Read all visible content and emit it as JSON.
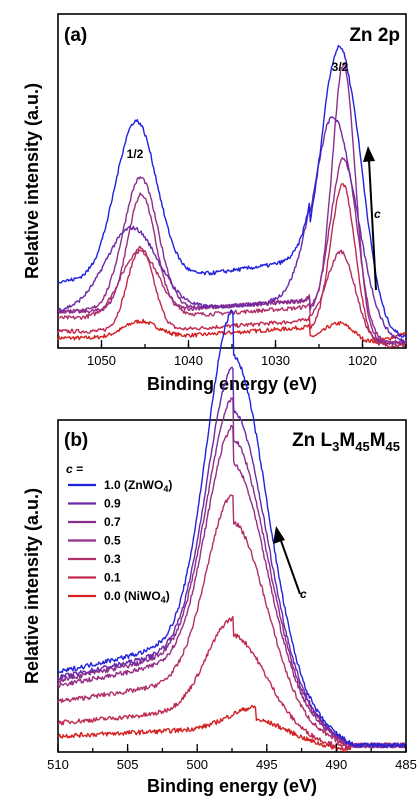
{
  "chart_data": [
    {
      "type": "line",
      "panel_label": "(a)",
      "element_label": "Zn 2p",
      "xlabel": "Binding energy (eV)",
      "ylabel": "Relative intensity (a.u.)",
      "xlim": [
        1055,
        1015
      ],
      "x_ticks": [
        1050,
        1040,
        1030,
        1020
      ],
      "x_minor_step": 5,
      "y_ticks": "none",
      "annotations": [
        "1/2",
        "3/2",
        "c"
      ],
      "series": [
        {
          "color": "#d42020",
          "base": 0.03,
          "tail_rise": 0.04,
          "peaks": [
            {
              "x": 1045.5,
              "h": 0.05,
              "w": 2.0
            },
            {
              "x": 1022.2,
              "h": 0.06,
              "w": 1.6
            }
          ],
          "peaks_base": [
            0.02,
            0.0
          ]
        },
        {
          "color": "#c02a50",
          "base": 0.05,
          "tail_rise": 0.0,
          "peaks": [
            {
              "x": 1045.5,
              "h": 0.25,
              "w": 1.5
            },
            {
              "x": 1022.2,
              "h": 0.47,
              "w": 1.4
            }
          ]
        },
        {
          "color": "#b0306a",
          "base": 0.09,
          "tail_rise": 0.0,
          "peaks": [
            {
              "x": 1045.6,
              "h": 0.2,
              "w": 2.2
            },
            {
              "x": 1022.2,
              "h": 0.25,
              "w": 1.5
            }
          ]
        },
        {
          "color": "#962e86",
          "base": 0.11,
          "tail_rise": 0.0,
          "peaks": [
            {
              "x": 1045.4,
              "h": 0.35,
              "w": 1.6
            },
            {
              "x": 1022.0,
              "h": 0.53,
              "w": 1.5
            }
          ]
        },
        {
          "color": "#8a2e8e",
          "base": 0.11,
          "tail_rise": 0.0,
          "peaks": [
            {
              "x": 1045.5,
              "h": 0.4,
              "w": 2.0
            },
            {
              "x": 1022.1,
              "h": 0.81,
              "w": 1.3
            }
          ]
        },
        {
          "color": "#6a2aa8",
          "base": 0.11,
          "tail_rise": 0.0,
          "peaks": [
            {
              "x": 1046.5,
              "h": 0.25,
              "w": 3.0
            },
            {
              "x": 1023.0,
              "h": 0.61,
              "w": 2.5
            }
          ]
        },
        {
          "color": "#2222dd",
          "base": 0.2,
          "tail_rise": 0.0,
          "peaks": [
            {
              "x": 1046.0,
              "h": 0.48,
              "w": 2.4
            },
            {
              "x": 1022.2,
              "h": 0.81,
              "w": 2.2
            }
          ]
        }
      ]
    },
    {
      "type": "line",
      "panel_label": "(b)",
      "element_label": "Zn L3M45M45",
      "element_main": "Zn L",
      "element_sub": [
        "3",
        "45",
        "45"
      ],
      "xlabel": "Binding energy (eV)",
      "ylabel": "Relative intensity (a.u.)",
      "xlim": [
        510,
        485
      ],
      "x_ticks": [
        510,
        505,
        500,
        495,
        490,
        485
      ],
      "x_minor_step": 2.5,
      "y_ticks": "none",
      "annotations": [
        "c"
      ],
      "legend": {
        "title": "c =",
        "placement": "top-left",
        "entries": [
          {
            "label": "1.0 (ZnWO",
            "sub": "4",
            "tail": ")",
            "color": "#2222dd"
          },
          {
            "label": "0.9",
            "color": "#6a2aa8"
          },
          {
            "label": "0.7",
            "color": "#8a2e8e"
          },
          {
            "label": "0.5",
            "color": "#962e86"
          },
          {
            "label": "0.3",
            "color": "#b0306a"
          },
          {
            "label": "0.1",
            "color": "#c02a50"
          },
          {
            "label": "0.0 (NiWO",
            "sub": "4",
            "tail": ")",
            "color": "#d42020"
          }
        ]
      },
      "series": [
        {
          "color": "#d42020",
          "c": 0.0,
          "left_level": 0.06,
          "peak_x": 495.8,
          "peak_h": 0.06
        },
        {
          "color": "#c02a50",
          "c": 0.1,
          "left_level": 0.11,
          "peak_x": 497.4,
          "peak_h": 0.27
        },
        {
          "color": "#b0306a",
          "c": 0.3,
          "left_level": 0.19,
          "peak_x": 497.4,
          "peak_h": 0.55
        },
        {
          "color": "#962e86",
          "c": 0.5,
          "left_level": 0.25,
          "peak_x": 497.4,
          "peak_h": 0.68
        },
        {
          "color": "#8a2e8e",
          "c": 0.7,
          "left_level": 0.27,
          "peak_x": 497.4,
          "peak_h": 0.74
        },
        {
          "color": "#6a2aa8",
          "c": 0.9,
          "left_level": 0.28,
          "peak_x": 497.4,
          "peak_h": 0.82
        },
        {
          "color": "#2222dd",
          "c": 1.0,
          "left_level": 0.3,
          "peak_x": 497.4,
          "peak_h": 0.97
        }
      ]
    }
  ]
}
